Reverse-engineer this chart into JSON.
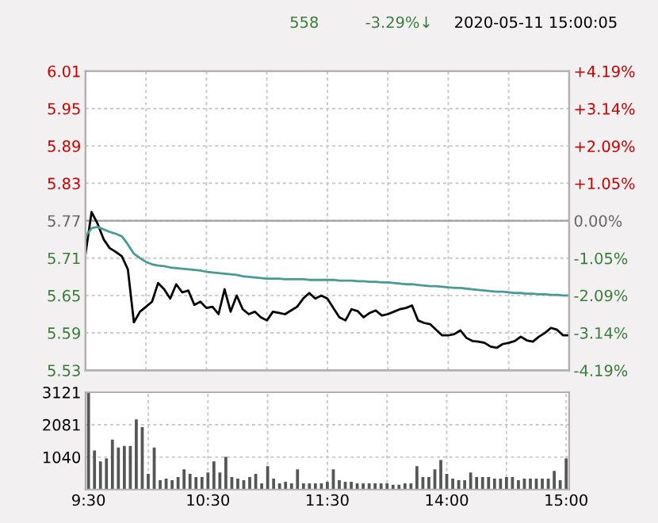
{
  "chart_data": [
    {
      "type": "line",
      "annotations": [
        "558",
        "-3.29%↓",
        "2020-05-11 15:00:05"
      ],
      "categories": [
        null,
        null,
        null,
        null,
        null,
        null,
        null,
        null,
        null,
        null,
        null,
        null,
        null,
        null,
        null,
        null,
        null,
        null,
        null,
        null,
        null,
        null,
        null,
        null,
        null,
        null,
        null,
        null,
        null,
        null,
        null,
        null,
        null,
        null,
        null,
        null,
        null,
        null,
        null,
        null,
        null,
        null,
        null,
        null,
        null,
        null,
        null,
        null,
        null,
        null,
        null,
        null,
        null,
        null,
        null,
        null,
        null,
        null,
        null,
        null,
        null,
        null,
        null,
        null,
        null,
        null,
        null,
        null,
        null,
        null,
        null,
        null,
        null,
        null,
        null,
        null,
        null,
        null,
        null,
        null,
        null
      ],
      "ylim": [
        5.53,
        6.01
      ],
      "yticks": [
        {
          "value": 5.53,
          "label": "5.53"
        },
        {
          "value": 5.59,
          "label": "5.59"
        },
        {
          "value": 5.65,
          "label": "5.65"
        },
        {
          "value": 5.71,
          "label": "5.71"
        },
        {
          "value": 5.77,
          "label": "5.77"
        },
        {
          "value": 5.83,
          "label": "5.83"
        },
        {
          "value": 5.89,
          "label": "5.89"
        },
        {
          "value": 5.95,
          "label": "5.95"
        },
        {
          "value": 6.01,
          "label": "6.01"
        }
      ],
      "y2lim": [
        -4.19,
        4.19
      ],
      "y2ticks": [
        {
          "value": -4.19,
          "label": "-4.19%"
        },
        {
          "value": -3.14,
          "label": "-3.14%"
        },
        {
          "value": -2.09,
          "label": "-2.09%"
        },
        {
          "value": -1.05,
          "label": "-1.05%"
        },
        {
          "value": 0,
          "label": "0.00%"
        },
        {
          "value": 1.05,
          "label": "+1.05%"
        },
        {
          "value": 2.09,
          "label": "+2.09%"
        },
        {
          "value": 3.14,
          "label": "+3.14%"
        },
        {
          "value": 4.19,
          "label": "+4.19%"
        }
      ],
      "ref_lines": [
        {
          "axis": "y",
          "value": 5.77,
          "color": "#a0a0a0",
          "line_style": "solid"
        }
      ],
      "grid": true,
      "marker": "none",
      "line_style": "solid",
      "series": [
        {
          "color": "#000000",
          "values": [
            5.717,
            5.784,
            5.765,
            5.74,
            5.726,
            5.72,
            5.713,
            5.692,
            5.607,
            5.624,
            5.632,
            5.64,
            5.67,
            5.66,
            5.645,
            5.668,
            5.655,
            5.658,
            5.635,
            5.64,
            5.63,
            5.632,
            5.62,
            5.66,
            5.624,
            5.65,
            5.628,
            5.62,
            5.624,
            5.615,
            5.61,
            5.624,
            5.622,
            5.62,
            5.626,
            5.632,
            5.645,
            5.654,
            5.645,
            5.65,
            5.645,
            5.63,
            5.615,
            5.61,
            5.628,
            5.625,
            5.615,
            5.622,
            5.626,
            5.618,
            5.62,
            5.624,
            5.628,
            5.63,
            5.634,
            5.61,
            5.606,
            5.604,
            5.595,
            5.586,
            5.586,
            5.588,
            5.594,
            5.582,
            5.577,
            5.576,
            5.574,
            5.568,
            5.566,
            5.572,
            5.574,
            5.577,
            5.584,
            5.578,
            5.576,
            5.584,
            5.59,
            5.598,
            5.595,
            5.586,
            5.586
          ]
        },
        {
          "color": "#4a9a94",
          "values": [
            5.745,
            5.758,
            5.76,
            5.756,
            5.752,
            5.749,
            5.745,
            5.732,
            5.717,
            5.71,
            5.704,
            5.7,
            5.698,
            5.697,
            5.695,
            5.694,
            5.693,
            5.692,
            5.691,
            5.69,
            5.688,
            5.687,
            5.686,
            5.685,
            5.684,
            5.683,
            5.681,
            5.68,
            5.679,
            5.678,
            5.677,
            5.677,
            5.677,
            5.676,
            5.676,
            5.676,
            5.676,
            5.675,
            5.675,
            5.675,
            5.675,
            5.675,
            5.674,
            5.674,
            5.674,
            5.673,
            5.673,
            5.672,
            5.672,
            5.671,
            5.671,
            5.67,
            5.669,
            5.668,
            5.668,
            5.667,
            5.666,
            5.665,
            5.665,
            5.664,
            5.663,
            5.662,
            5.662,
            5.661,
            5.66,
            5.659,
            5.658,
            5.657,
            5.656,
            5.656,
            5.655,
            5.654,
            5.654,
            5.653,
            5.653,
            5.652,
            5.652,
            5.651,
            5.651,
            5.65,
            5.65
          ]
        }
      ]
    },
    {
      "type": "bar",
      "categories": [
        "9:30",
        null,
        null,
        null,
        null,
        null,
        null,
        null,
        null,
        null,
        null,
        null,
        null,
        null,
        null,
        null,
        null,
        null,
        null,
        null,
        "10:30",
        null,
        null,
        null,
        null,
        null,
        null,
        null,
        null,
        null,
        null,
        null,
        null,
        null,
        null,
        null,
        null,
        null,
        null,
        null,
        "11:30",
        null,
        null,
        null,
        null,
        null,
        null,
        null,
        null,
        null,
        null,
        null,
        null,
        null,
        null,
        null,
        null,
        null,
        null,
        null,
        "14:00",
        null,
        null,
        null,
        null,
        null,
        null,
        null,
        null,
        null,
        null,
        null,
        null,
        null,
        null,
        null,
        null,
        null,
        null,
        null,
        "15:00"
      ],
      "ylim": [
        0,
        3121
      ],
      "yticks": [
        1040,
        2081,
        3121
      ],
      "grid": true,
      "series": [
        {
          "color": "#555555",
          "values": [
            3100,
            1250,
            900,
            1000,
            1600,
            1350,
            1400,
            1400,
            2250,
            2000,
            500,
            1350,
            300,
            350,
            300,
            400,
            650,
            500,
            400,
            400,
            550,
            900,
            550,
            1050,
            400,
            350,
            300,
            400,
            500,
            200,
            750,
            350,
            200,
            250,
            200,
            650,
            200,
            200,
            200,
            200,
            250,
            650,
            300,
            250,
            250,
            200,
            200,
            200,
            200,
            200,
            200,
            150,
            150,
            200,
            200,
            750,
            400,
            400,
            650,
            950,
            500,
            350,
            300,
            300,
            550,
            400,
            400,
            400,
            350,
            350,
            400,
            400,
            300,
            350,
            350,
            350,
            350,
            350,
            600,
            300,
            1000
          ]
        }
      ]
    }
  ]
}
